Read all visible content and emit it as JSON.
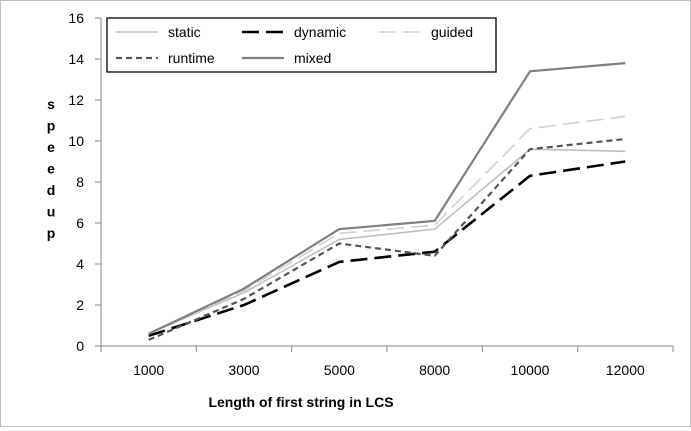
{
  "chart_data": {
    "type": "line",
    "title": "",
    "xlabel": "Length of first string in LCS",
    "ylabel": "speedup",
    "categories": [
      "1000",
      "3000",
      "5000",
      "8000",
      "10000",
      "12000"
    ],
    "ylim": [
      0,
      16
    ],
    "yticks": [
      0,
      2,
      4,
      6,
      8,
      10,
      12,
      14,
      16
    ],
    "grid": false,
    "legend_position": "top-left",
    "series": [
      {
        "name": "static",
        "values": [
          0.6,
          2.6,
          5.2,
          5.7,
          9.6,
          9.5
        ],
        "color": "#c0c0c0",
        "dash": "solid"
      },
      {
        "name": "dynamic",
        "values": [
          0.5,
          2.0,
          4.1,
          4.6,
          8.3,
          9.0
        ],
        "color": "#000000",
        "dash": "long-dash"
      },
      {
        "name": "guided",
        "values": [
          0.6,
          2.7,
          5.5,
          5.9,
          10.6,
          11.2
        ],
        "color": "#d0d0d0",
        "dash": "long-dash"
      },
      {
        "name": "runtime",
        "values": [
          0.3,
          2.3,
          5.0,
          4.4,
          9.6,
          10.1
        ],
        "color": "#555555",
        "dash": "short-dash"
      },
      {
        "name": "mixed",
        "values": [
          0.6,
          2.8,
          5.7,
          6.1,
          13.4,
          13.8
        ],
        "color": "#808080",
        "dash": "solid"
      }
    ]
  }
}
